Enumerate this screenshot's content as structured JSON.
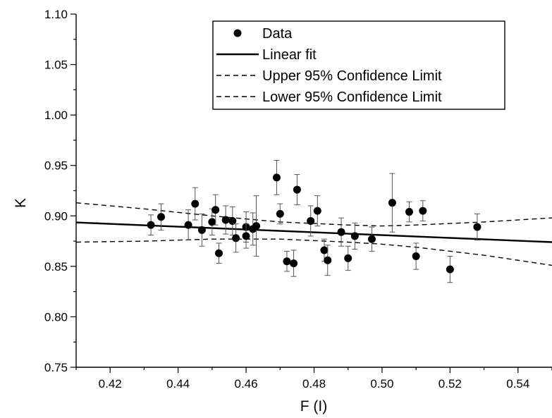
{
  "chart_data": {
    "type": "scatter",
    "title": "",
    "xlabel": "F (I)",
    "ylabel": "K",
    "xlim": [
      0.41,
      0.55
    ],
    "ylim": [
      0.75,
      1.1
    ],
    "x_ticks": [
      "0.42",
      "0.44",
      "0.46",
      "0.48",
      "0.50",
      "0.52",
      "0.54"
    ],
    "y_ticks": [
      "0.75",
      "0.80",
      "0.85",
      "0.90",
      "0.95",
      "1.00",
      "1.05",
      "1.10"
    ],
    "grid": false,
    "legend_position": "top-right",
    "legend": [
      "Data",
      "Linear fit",
      "Upper 95% Confidence Limit",
      "Lower 95% Confidence Limit"
    ],
    "series": [
      {
        "name": "Data",
        "kind": "points-with-error-bars",
        "color": "#000000",
        "points": [
          {
            "x": 0.432,
            "y": 0.891,
            "err": 0.01
          },
          {
            "x": 0.435,
            "y": 0.899,
            "err": 0.013
          },
          {
            "x": 0.443,
            "y": 0.891,
            "err": 0.015
          },
          {
            "x": 0.445,
            "y": 0.912,
            "err": 0.016
          },
          {
            "x": 0.447,
            "y": 0.886,
            "err": 0.016
          },
          {
            "x": 0.45,
            "y": 0.894,
            "err": 0.013
          },
          {
            "x": 0.451,
            "y": 0.906,
            "err": 0.015
          },
          {
            "x": 0.452,
            "y": 0.863,
            "err": 0.01
          },
          {
            "x": 0.454,
            "y": 0.896,
            "err": 0.014
          },
          {
            "x": 0.456,
            "y": 0.895,
            "err": 0.014
          },
          {
            "x": 0.457,
            "y": 0.878,
            "err": 0.014
          },
          {
            "x": 0.46,
            "y": 0.889,
            "err": 0.015
          },
          {
            "x": 0.46,
            "y": 0.88,
            "err": 0.012
          },
          {
            "x": 0.462,
            "y": 0.887,
            "err": 0.016
          },
          {
            "x": 0.463,
            "y": 0.89,
            "err": 0.03
          },
          {
            "x": 0.469,
            "y": 0.938,
            "err": 0.017
          },
          {
            "x": 0.47,
            "y": 0.902,
            "err": 0.01
          },
          {
            "x": 0.472,
            "y": 0.855,
            "err": 0.01
          },
          {
            "x": 0.474,
            "y": 0.853,
            "err": 0.013
          },
          {
            "x": 0.475,
            "y": 0.926,
            "err": 0.015
          },
          {
            "x": 0.479,
            "y": 0.895,
            "err": 0.015
          },
          {
            "x": 0.481,
            "y": 0.905,
            "err": 0.015
          },
          {
            "x": 0.483,
            "y": 0.866,
            "err": 0.011
          },
          {
            "x": 0.484,
            "y": 0.856,
            "err": 0.015
          },
          {
            "x": 0.488,
            "y": 0.884,
            "err": 0.014
          },
          {
            "x": 0.49,
            "y": 0.858,
            "err": 0.012
          },
          {
            "x": 0.492,
            "y": 0.88,
            "err": 0.013
          },
          {
            "x": 0.497,
            "y": 0.877,
            "err": 0.012
          },
          {
            "x": 0.503,
            "y": 0.913,
            "err": 0.029
          },
          {
            "x": 0.508,
            "y": 0.904,
            "err": 0.01
          },
          {
            "x": 0.51,
            "y": 0.86,
            "err": 0.013
          },
          {
            "x": 0.512,
            "y": 0.905,
            "err": 0.01
          },
          {
            "x": 0.52,
            "y": 0.847,
            "err": 0.013
          },
          {
            "x": 0.528,
            "y": 0.889,
            "err": 0.013
          }
        ]
      },
      {
        "name": "Linear fit",
        "kind": "line",
        "style": "solid",
        "x": [
          0.41,
          0.55
        ],
        "y": [
          0.8935,
          0.874
        ]
      },
      {
        "name": "Upper 95% Confidence Limit",
        "kind": "curve",
        "style": "dashed",
        "x": [
          0.41,
          0.43,
          0.45,
          0.47,
          0.49,
          0.5,
          0.51,
          0.53,
          0.55
        ],
        "y": [
          0.913,
          0.907,
          0.9,
          0.894,
          0.891,
          0.89,
          0.891,
          0.894,
          0.898
        ]
      },
      {
        "name": "Lower 95% Confidence Limit",
        "kind": "curve",
        "style": "dashed",
        "x": [
          0.41,
          0.43,
          0.45,
          0.47,
          0.49,
          0.5,
          0.51,
          0.53,
          0.55
        ],
        "y": [
          0.874,
          0.875,
          0.877,
          0.877,
          0.874,
          0.872,
          0.869,
          0.861,
          0.851
        ]
      }
    ]
  }
}
